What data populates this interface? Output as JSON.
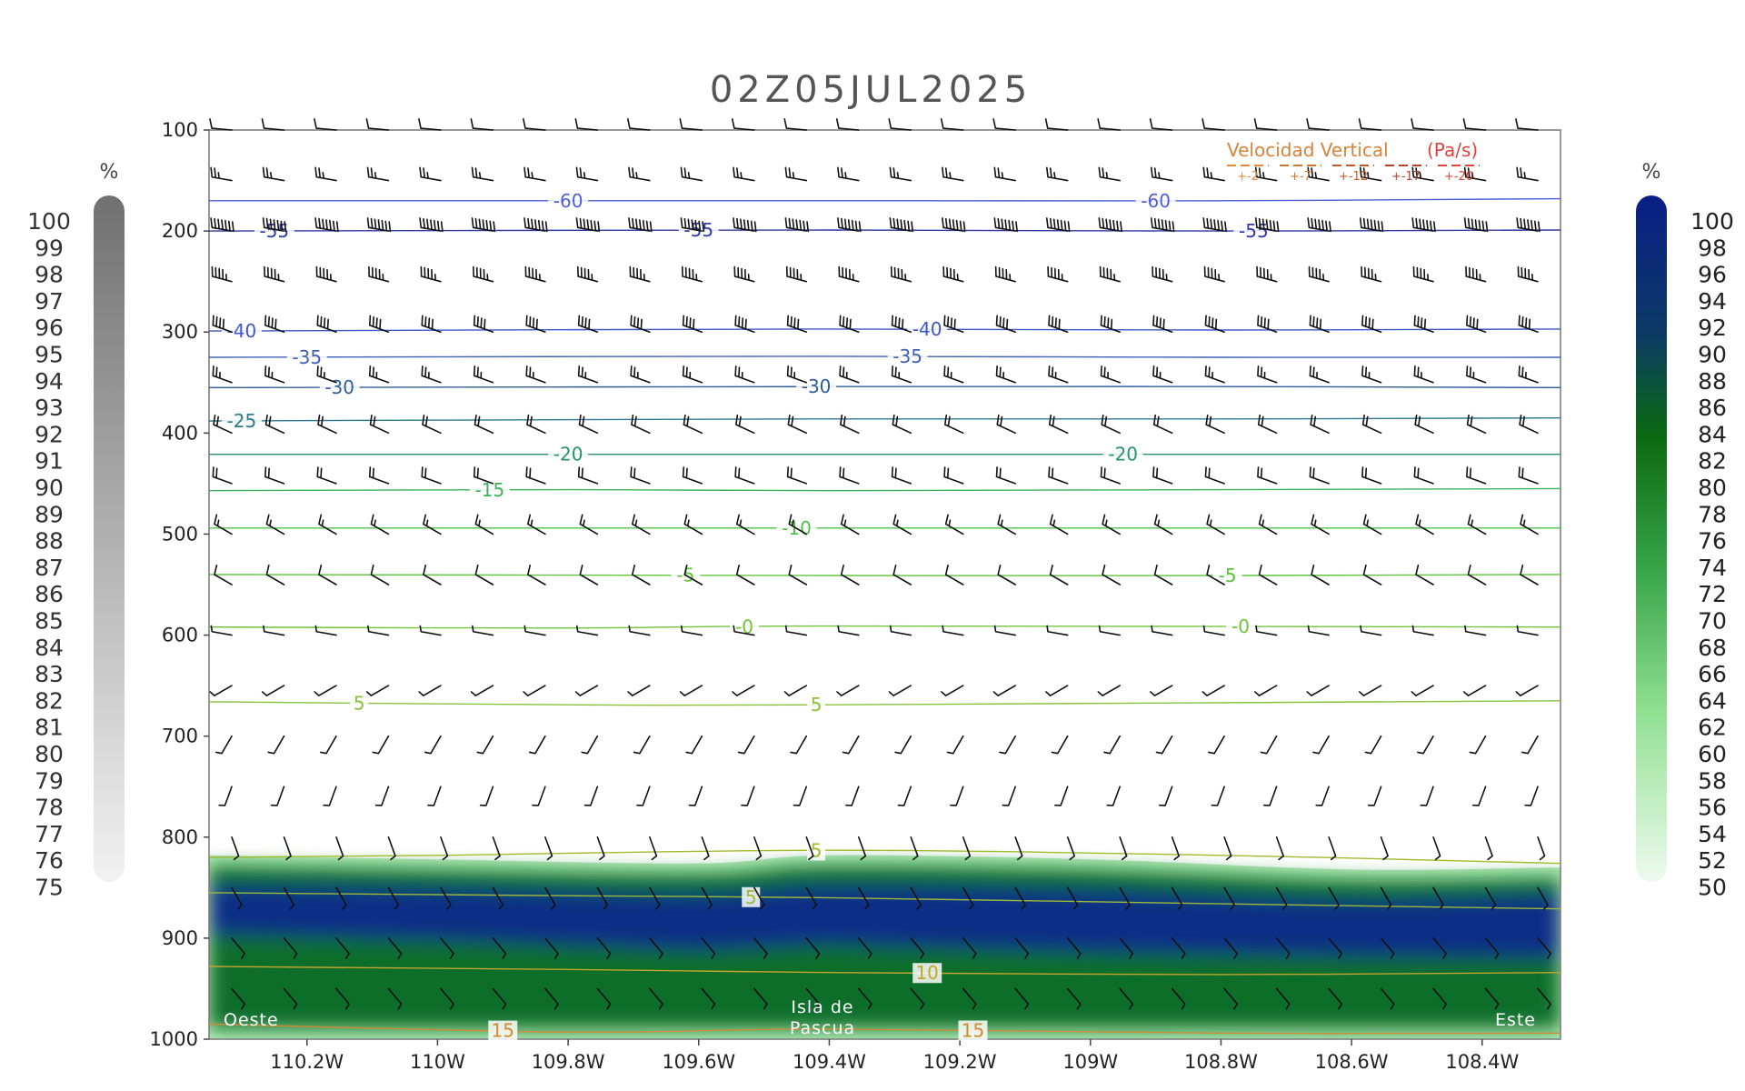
{
  "chart_data": {
    "type": "cross-section",
    "title": "02Z05JUL2025",
    "y_axis": {
      "scale": "pressure",
      "range": [
        1000,
        100
      ],
      "ticks": [
        "100",
        "200",
        "300",
        "400",
        "500",
        "600",
        "700",
        "800",
        "900",
        "1000"
      ]
    },
    "x_axis": {
      "range": [
        -110.35,
        -108.28
      ],
      "ticks": [
        {
          "value": -110.2,
          "label": "110.2W"
        },
        {
          "value": -110.0,
          "label": "110W"
        },
        {
          "value": -109.8,
          "label": "109.8W"
        },
        {
          "value": -109.6,
          "label": "109.6W"
        },
        {
          "value": -109.4,
          "label": "109.4W"
        },
        {
          "value": -109.2,
          "label": "109.2W"
        },
        {
          "value": -109.0,
          "label": "109W"
        },
        {
          "value": -108.8,
          "label": "108.8W"
        },
        {
          "value": -108.6,
          "label": "108.6W"
        },
        {
          "value": -108.4,
          "label": "108.4W"
        }
      ]
    },
    "annotations": {
      "west": "Oeste",
      "east": "Este",
      "island_line1": "Isla de",
      "island_line2": "Pascua"
    },
    "left_colorbar": {
      "unit": "%",
      "labels": [
        "100",
        "99",
        "98",
        "97",
        "96",
        "95",
        "94",
        "93",
        "92",
        "91",
        "90",
        "89",
        "88",
        "87",
        "86",
        "85",
        "84",
        "83",
        "82",
        "81",
        "80",
        "79",
        "78",
        "77",
        "76",
        "75"
      ]
    },
    "right_colorbar": {
      "unit": "%",
      "labels": [
        "100",
        "98",
        "96",
        "94",
        "92",
        "90",
        "88",
        "86",
        "84",
        "82",
        "80",
        "78",
        "76",
        "74",
        "72",
        "70",
        "68",
        "66",
        "64",
        "62",
        "60",
        "58",
        "56",
        "54",
        "52",
        "50"
      ]
    },
    "vertical_velocity_legend": {
      "title": "Velocidad Vertical",
      "unit": "(Pa/s)",
      "entries": [
        {
          "label": "+-2",
          "color": "#e08a3c"
        },
        {
          "label": "+-7",
          "color": "#d4752e"
        },
        {
          "label": "+-12",
          "color": "#c45a28"
        },
        {
          "label": "+-17",
          "color": "#b8412a"
        },
        {
          "label": "+-20",
          "color": "#e0443c"
        }
      ]
    },
    "temperature_contours": [
      {
        "label": "-60",
        "color": "#4d5ed6",
        "points": [
          [
            -110.35,
            170
          ],
          [
            -109.4,
            170
          ],
          [
            -108.8,
            170
          ],
          [
            -108.28,
            168
          ]
        ],
        "labels_at": [
          -109.8,
          -108.9
        ]
      },
      {
        "label": "-55",
        "color": "#2e3aa8",
        "points": [
          [
            -110.35,
            200
          ],
          [
            -109.4,
            199
          ],
          [
            -108.8,
            200
          ],
          [
            -108.28,
            199
          ]
        ],
        "labels_at": [
          -110.25,
          -109.6,
          -108.75
        ]
      },
      {
        "label": "-40",
        "color": "#3f58c9",
        "points": [
          [
            -110.35,
            299
          ],
          [
            -109.4,
            297
          ],
          [
            -108.8,
            298
          ],
          [
            -108.28,
            297
          ]
        ],
        "labels_at": [
          -110.3,
          -109.25
        ]
      },
      {
        "label": "-35",
        "color": "#3d5fb8",
        "points": [
          [
            -110.35,
            325
          ],
          [
            -109.4,
            324
          ],
          [
            -108.8,
            325
          ],
          [
            -108.28,
            325
          ]
        ],
        "labels_at": [
          -110.2,
          -109.28
        ]
      },
      {
        "label": "-30",
        "color": "#2f5c9c",
        "points": [
          [
            -110.35,
            355
          ],
          [
            -109.4,
            354
          ],
          [
            -108.8,
            354
          ],
          [
            -108.28,
            355
          ]
        ],
        "labels_at": [
          -110.15,
          -109.42
        ]
      },
      {
        "label": "-25",
        "color": "#2b7a8e",
        "points": [
          [
            -110.35,
            388
          ],
          [
            -109.4,
            386
          ],
          [
            -108.8,
            386
          ],
          [
            -108.28,
            385
          ]
        ],
        "labels_at": [
          -110.3
        ]
      },
      {
        "label": "-20",
        "color": "#27936e",
        "points": [
          [
            -110.35,
            421
          ],
          [
            -109.4,
            421
          ],
          [
            -108.8,
            421
          ],
          [
            -108.28,
            421
          ]
        ],
        "labels_at": [
          -109.8,
          -108.95
        ]
      },
      {
        "label": "-15",
        "color": "#3bb25c",
        "points": [
          [
            -110.35,
            457
          ],
          [
            -109.8,
            456
          ],
          [
            -109.4,
            457
          ],
          [
            -108.28,
            455
          ]
        ],
        "labels_at": [
          -109.92
        ]
      },
      {
        "label": "-10",
        "color": "#4cc24a",
        "points": [
          [
            -110.35,
            494
          ],
          [
            -109.4,
            494
          ],
          [
            -108.8,
            494
          ],
          [
            -108.28,
            494
          ]
        ],
        "labels_at": [
          -109.45
        ]
      },
      {
        "label": "-5",
        "color": "#5ec43a",
        "points": [
          [
            -110.35,
            540
          ],
          [
            -109.4,
            541
          ],
          [
            -108.8,
            541
          ],
          [
            -108.28,
            540
          ]
        ],
        "labels_at": [
          -109.62,
          -108.79
        ]
      },
      {
        "label": "-0",
        "color": "#70c43a",
        "points": [
          [
            -110.35,
            592
          ],
          [
            -109.8,
            593
          ],
          [
            -109.4,
            591
          ],
          [
            -108.28,
            592
          ]
        ],
        "labels_at": [
          -109.53,
          -108.77
        ]
      },
      {
        "label": "5",
        "color": "#89c23a",
        "points": [
          [
            -110.35,
            666
          ],
          [
            -109.8,
            669
          ],
          [
            -109.4,
            669
          ],
          [
            -108.28,
            665
          ]
        ],
        "labels_at": [
          -110.12,
          -109.42
        ]
      },
      {
        "label": "5",
        "color": "#a0bb2c",
        "points": [
          [
            -110.35,
            820
          ],
          [
            -110.0,
            818
          ],
          [
            -109.4,
            813
          ],
          [
            -108.8,
            818
          ],
          [
            -108.28,
            826
          ]
        ],
        "labels_at": [
          -109.42
        ]
      },
      {
        "label": "5",
        "color": "#9eb83a",
        "points": [
          [
            -110.35,
            855
          ],
          [
            -109.8,
            858
          ],
          [
            -109.4,
            860
          ],
          [
            -108.8,
            866
          ],
          [
            -108.28,
            871
          ]
        ],
        "labels_at": [
          -109.52
        ]
      },
      {
        "label": "10",
        "color": "#c4a52e",
        "points": [
          [
            -110.35,
            928
          ],
          [
            -109.8,
            931
          ],
          [
            -109.4,
            934
          ],
          [
            -108.8,
            936
          ],
          [
            -108.28,
            934
          ]
        ],
        "labels_at": [
          -109.25
        ]
      },
      {
        "label": "15",
        "color": "#d08b32",
        "points": [
          [
            -110.35,
            985
          ],
          [
            -109.8,
            993
          ],
          [
            -109.4,
            990
          ],
          [
            -108.8,
            994
          ],
          [
            -108.28,
            994
          ]
        ],
        "labels_at": [
          -109.9,
          -109.18
        ]
      }
    ],
    "humidity_field": {
      "description": "relative humidity shading >= 50% in lower layer",
      "moist_top_p": [
        [
          -110.35,
          818
        ],
        [
          -110.0,
          822
        ],
        [
          -109.6,
          826
        ],
        [
          -109.4,
          818
        ],
        [
          -109.0,
          822
        ],
        [
          -108.6,
          832
        ],
        [
          -108.28,
          830
        ]
      ],
      "core_top_p": [
        [
          -110.35,
          848
        ],
        [
          -110.0,
          850
        ],
        [
          -109.6,
          856
        ],
        [
          -109.4,
          848
        ],
        [
          -109.0,
          852
        ],
        [
          -108.6,
          862
        ],
        [
          -108.28,
          856
        ]
      ],
      "core_bottom_p": [
        [
          -110.35,
          896
        ],
        [
          -110.0,
          902
        ],
        [
          -109.6,
          912
        ],
        [
          -109.4,
          906
        ],
        [
          -109.0,
          914
        ],
        [
          -108.6,
          918
        ],
        [
          -108.28,
          920
        ]
      ]
    },
    "wind_levels": [
      100,
      150,
      200,
      250,
      300,
      350,
      400,
      450,
      500,
      550,
      600,
      650,
      700,
      750,
      800,
      850,
      900,
      950
    ],
    "wind_barbs_by_level": {
      "100": {
        "dir": 275,
        "spd": 10
      },
      "150": {
        "dir": 280,
        "spd": 25
      },
      "200": {
        "dir": 280,
        "spd": 70
      },
      "250": {
        "dir": 285,
        "spd": 45
      },
      "300": {
        "dir": 290,
        "spd": 40
      },
      "350": {
        "dir": 290,
        "spd": 25
      },
      "400": {
        "dir": 295,
        "spd": 20
      },
      "450": {
        "dir": 290,
        "spd": 20
      },
      "500": {
        "dir": 300,
        "spd": 15
      },
      "550": {
        "dir": 300,
        "spd": 10
      },
      "600": {
        "dir": 280,
        "spd": 5
      },
      "650": {
        "dir": 240,
        "spd": 5
      },
      "700": {
        "dir": 210,
        "spd": 5
      },
      "750": {
        "dir": 200,
        "spd": 5
      },
      "800": {
        "dir": 160,
        "spd": 5
      },
      "850": {
        "dir": 150,
        "spd": 5
      },
      "900": {
        "dir": 140,
        "spd": 5
      },
      "950": {
        "dir": 140,
        "spd": 5
      }
    }
  }
}
